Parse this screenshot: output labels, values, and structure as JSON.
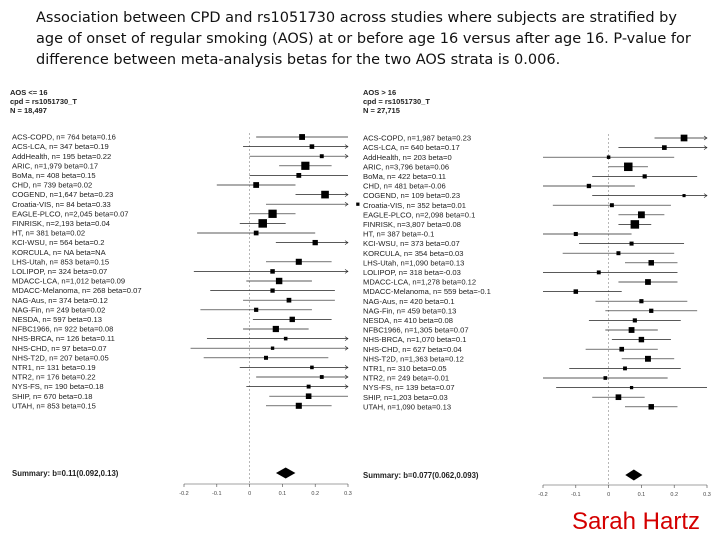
{
  "page": {
    "title": "Association between CPD and rs1051730 across studies where subjects are stratified by age of onset of regular smoking (AOS) at or before age 16 versus after age 16. P-value for difference between meta-analysis betas for the two AOS strata is 0.006.",
    "signature": "Sarah Hartz"
  },
  "colors": {
    "marker": "#000000",
    "line": "#222222",
    "axis": "#444444",
    "signature": "#d40000"
  },
  "chart_data": [
    {
      "type": "forest",
      "header": [
        "AOS <= 16",
        "cpd = rs1051730_T",
        "N = 18,497"
      ],
      "xlim": [
        -0.2,
        0.3
      ],
      "ticks": [
        -0.2,
        -0.1,
        0,
        0.1,
        0.2,
        0.3
      ],
      "tick_labels": [
        "-0.2",
        "-0.1",
        "0",
        "0.1",
        "0.2",
        "0.3"
      ],
      "studies": [
        {
          "label": "ACS-COPD, n= 764 beta=0.16",
          "beta": 0.16,
          "lo": 0.02,
          "hi": 0.3,
          "n": 764
        },
        {
          "label": "ACS-LCA, n= 347 beta=0.19",
          "beta": 0.19,
          "lo": -0.02,
          "hi": 0.4,
          "n": 347
        },
        {
          "label": "AddHealth, n= 195 beta=0.22",
          "beta": 0.22,
          "lo": 0.0,
          "hi": 0.44,
          "n": 195
        },
        {
          "label": "ARIC, n=1,979 beta=0.17",
          "beta": 0.17,
          "lo": 0.09,
          "hi": 0.25,
          "n": 1979
        },
        {
          "label": "BoMa, n= 408 beta=0.15",
          "beta": 0.15,
          "lo": 0.0,
          "hi": 0.3,
          "n": 408
        },
        {
          "label": "CHD, n= 739 beta=0.02",
          "beta": 0.02,
          "lo": -0.1,
          "hi": 0.14,
          "n": 739
        },
        {
          "label": "COGEND, n=1,647 beta=0.23",
          "beta": 0.23,
          "lo": 0.14,
          "hi": 0.32,
          "n": 1647
        },
        {
          "label": "Croatia-VIS, n= 84 beta=0.33",
          "beta": 0.33,
          "lo": 0.05,
          "hi": 0.61,
          "n": 84
        },
        {
          "label": "EAGLE-PLCO, n=2,045 beta=0.07",
          "beta": 0.07,
          "lo": 0.0,
          "hi": 0.14,
          "n": 2045
        },
        {
          "label": "FINRISK, n=2,193 beta=0.04",
          "beta": 0.04,
          "lo": -0.03,
          "hi": 0.11,
          "n": 2193
        },
        {
          "label": "HT, n= 381 beta=0.02",
          "beta": 0.02,
          "lo": -0.16,
          "hi": 0.2,
          "n": 381
        },
        {
          "label": "KCI-WSU, n= 564 beta=0.2",
          "beta": 0.2,
          "lo": 0.08,
          "hi": 0.32,
          "n": 564
        },
        {
          "label": "KORCULA, n= NA beta=NA",
          "beta": null,
          "lo": null,
          "hi": null,
          "n": null
        },
        {
          "label": "LHS-Utah, n= 853 beta=0.15",
          "beta": 0.15,
          "lo": 0.05,
          "hi": 0.25,
          "n": 853
        },
        {
          "label": "LOLIPOP, n= 324 beta=0.07",
          "beta": 0.07,
          "lo": -0.17,
          "hi": 0.31,
          "n": 324
        },
        {
          "label": "MDACC-LCA, n=1,012 beta=0.09",
          "beta": 0.09,
          "lo": -0.01,
          "hi": 0.19,
          "n": 1012
        },
        {
          "label": "MDACC-Melanoma, n= 268 beta=0.07",
          "beta": 0.07,
          "lo": -0.12,
          "hi": 0.26,
          "n": 268
        },
        {
          "label": "NAG-Aus, n= 374 beta=0.12",
          "beta": 0.12,
          "lo": -0.02,
          "hi": 0.26,
          "n": 374
        },
        {
          "label": "NAG-Fin, n= 249 beta=0.02",
          "beta": 0.02,
          "lo": -0.15,
          "hi": 0.19,
          "n": 249
        },
        {
          "label": "NESDA, n= 597 beta=0.13",
          "beta": 0.13,
          "lo": 0.01,
          "hi": 0.25,
          "n": 597
        },
        {
          "label": "NFBC1966, n= 922 beta=0.08",
          "beta": 0.08,
          "lo": -0.02,
          "hi": 0.18,
          "n": 922
        },
        {
          "label": "NHS-BRCA, n= 126 beta=0.11",
          "beta": 0.11,
          "lo": -0.13,
          "hi": 0.35,
          "n": 126
        },
        {
          "label": "NHS-CHD, n= 97 beta=0.07",
          "beta": 0.07,
          "lo": -0.18,
          "hi": 0.32,
          "n": 97
        },
        {
          "label": "NHS-T2D, n= 207 beta=0.05",
          "beta": 0.05,
          "lo": -0.14,
          "hi": 0.24,
          "n": 207
        },
        {
          "label": "NTR1, n= 131 beta=0.19",
          "beta": 0.19,
          "lo": -0.03,
          "hi": 0.41,
          "n": 131
        },
        {
          "label": "NTR2, n= 176 beta=0.22",
          "beta": 0.22,
          "lo": 0.02,
          "hi": 0.42,
          "n": 176
        },
        {
          "label": "NYS-FS, n= 190 beta=0.18",
          "beta": 0.18,
          "lo": -0.01,
          "hi": 0.37,
          "n": 190
        },
        {
          "label": "SHIP, n= 670 beta=0.18",
          "beta": 0.18,
          "lo": 0.06,
          "hi": 0.3,
          "n": 670
        },
        {
          "label": "UTAH, n= 853 beta=0.15",
          "beta": 0.15,
          "lo": 0.05,
          "hi": 0.25,
          "n": 853
        }
      ],
      "summary": {
        "label": "Summary: b=0.11(0.092,0.13)",
        "beta": 0.11,
        "lo": 0.092,
        "hi": 0.13
      }
    },
    {
      "type": "forest",
      "header": [
        "AOS > 16",
        "cpd = rs1051730_T",
        "N = 27,715"
      ],
      "xlim": [
        -0.2,
        0.3
      ],
      "ticks": [
        -0.2,
        -0.1,
        0,
        0.1,
        0.2,
        0.3
      ],
      "tick_labels": [
        "-0.2",
        "-0.1",
        "0",
        "0.1",
        "0.2",
        "0.3"
      ],
      "studies": [
        {
          "label": "ACS-COPD, n=1,987 beta=0.23",
          "beta": 0.23,
          "lo": 0.14,
          "hi": 0.32,
          "n": 1987
        },
        {
          "label": "ACS-LCA, n= 640 beta=0.17",
          "beta": 0.17,
          "lo": 0.03,
          "hi": 0.31,
          "n": 640
        },
        {
          "label": "AddHealth, n= 203 beta=0",
          "beta": 0.0,
          "lo": -0.2,
          "hi": 0.2,
          "n": 203
        },
        {
          "label": "ARIC, n=3,796 beta=0.06",
          "beta": 0.06,
          "lo": 0.0,
          "hi": 0.12,
          "n": 3796
        },
        {
          "label": "BoMa, n= 422 beta=0.11",
          "beta": 0.11,
          "lo": -0.05,
          "hi": 0.27,
          "n": 422
        },
        {
          "label": "CHD, n= 481 beta=-0.06",
          "beta": -0.06,
          "lo": -0.2,
          "hi": 0.08,
          "n": 481
        },
        {
          "label": "COGEND, n= 109 beta=0.23",
          "beta": 0.23,
          "lo": -0.05,
          "hi": 0.51,
          "n": 109
        },
        {
          "label": "Croatia-VIS, n= 352 beta=0.01",
          "beta": 0.01,
          "lo": -0.17,
          "hi": 0.19,
          "n": 352
        },
        {
          "label": "EAGLE-PLCO, n=2,098 beta=0.1",
          "beta": 0.1,
          "lo": 0.03,
          "hi": 0.17,
          "n": 2098
        },
        {
          "label": "FINRISK, n=3,807 beta=0.08",
          "beta": 0.08,
          "lo": 0.03,
          "hi": 0.13,
          "n": 3807
        },
        {
          "label": "HT, n= 387 beta=-0.1",
          "beta": -0.1,
          "lo": -0.27,
          "hi": 0.07,
          "n": 387
        },
        {
          "label": "KCI-WSU, n= 373 beta=0.07",
          "beta": 0.07,
          "lo": -0.09,
          "hi": 0.23,
          "n": 373
        },
        {
          "label": "KORCULA, n= 354 beta=0.03",
          "beta": 0.03,
          "lo": -0.14,
          "hi": 0.2,
          "n": 354
        },
        {
          "label": "LHS-Utah, n=1,090 beta=0.13",
          "beta": 0.13,
          "lo": 0.05,
          "hi": 0.21,
          "n": 1090
        },
        {
          "label": "LOLIPOP, n= 318 beta=-0.03",
          "beta": -0.03,
          "lo": -0.27,
          "hi": 0.21,
          "n": 318
        },
        {
          "label": "MDACC-LCA, n=1,278 beta=0.12",
          "beta": 0.12,
          "lo": 0.03,
          "hi": 0.21,
          "n": 1278
        },
        {
          "label": "MDACC-Melanoma, n= 559 beta=-0.1",
          "beta": -0.1,
          "lo": -0.24,
          "hi": 0.04,
          "n": 559
        },
        {
          "label": "NAG-Aus, n= 420 beta=0.1",
          "beta": 0.1,
          "lo": -0.04,
          "hi": 0.24,
          "n": 420
        },
        {
          "label": "NAG-Fin, n= 459 beta=0.13",
          "beta": 0.13,
          "lo": -0.01,
          "hi": 0.27,
          "n": 459
        },
        {
          "label": "NESDA, n= 410 beta=0.08",
          "beta": 0.08,
          "lo": -0.06,
          "hi": 0.22,
          "n": 410
        },
        {
          "label": "NFBC1966, n=1,305 beta=0.07",
          "beta": 0.07,
          "lo": -0.01,
          "hi": 0.15,
          "n": 1305
        },
        {
          "label": "NHS-BRCA, n=1,070 beta=0.1",
          "beta": 0.1,
          "lo": 0.01,
          "hi": 0.19,
          "n": 1070
        },
        {
          "label": "NHS-CHD, n= 627 beta=0.04",
          "beta": 0.04,
          "lo": -0.07,
          "hi": 0.15,
          "n": 627
        },
        {
          "label": "NHS-T2D, n=1,363 beta=0.12",
          "beta": 0.12,
          "lo": 0.04,
          "hi": 0.2,
          "n": 1363
        },
        {
          "label": "NTR1, n= 310 beta=0.05",
          "beta": 0.05,
          "lo": -0.12,
          "hi": 0.22,
          "n": 310
        },
        {
          "label": "NTR2, n= 249 beta=-0.01",
          "beta": -0.01,
          "lo": -0.2,
          "hi": 0.18,
          "n": 249
        },
        {
          "label": "NYS-FS, n= 139 beta=0.07",
          "beta": 0.07,
          "lo": -0.16,
          "hi": 0.3,
          "n": 139
        },
        {
          "label": "SHIP, n=1,203 beta=0.03",
          "beta": 0.03,
          "lo": -0.05,
          "hi": 0.11,
          "n": 1203
        },
        {
          "label": "UTAH, n=1,090 beta=0.13",
          "beta": 0.13,
          "lo": 0.05,
          "hi": 0.21,
          "n": 1090
        }
      ],
      "summary": {
        "label": "Summary: b=0.077(0.062,0.093)",
        "beta": 0.077,
        "lo": 0.062,
        "hi": 0.093
      }
    }
  ]
}
